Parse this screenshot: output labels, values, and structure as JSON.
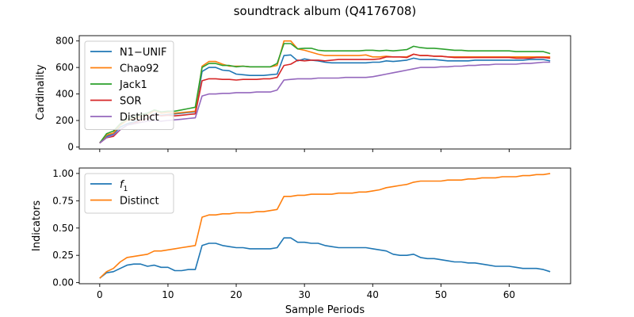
{
  "figure": {
    "title": "soundtrack album (Q4176708)",
    "xlabel": "Sample Periods"
  },
  "chart_data": [
    {
      "type": "line",
      "ylabel": "Cardinality",
      "xlim": [
        -3,
        69
      ],
      "ylim": [
        -15,
        840
      ],
      "yticks": [
        0,
        200,
        400,
        600,
        800
      ],
      "xticks": [
        0,
        10,
        20,
        30,
        40,
        50,
        60
      ],
      "grid": false,
      "legend": "top-left",
      "x": [
        0,
        1,
        2,
        3,
        4,
        5,
        6,
        7,
        8,
        9,
        10,
        11,
        12,
        13,
        14,
        15,
        16,
        17,
        18,
        19,
        20,
        21,
        22,
        23,
        24,
        25,
        26,
        27,
        28,
        29,
        30,
        31,
        32,
        33,
        34,
        35,
        36,
        37,
        38,
        39,
        40,
        41,
        42,
        43,
        44,
        45,
        46,
        47,
        48,
        49,
        50,
        51,
        52,
        53,
        54,
        55,
        56,
        57,
        58,
        59,
        60,
        61,
        62,
        63,
        64,
        65,
        66
      ],
      "series": [
        {
          "name": "N1−UNIF",
          "color": "#1f77b4",
          "values": [
            30,
            80,
            100,
            150,
            175,
            190,
            205,
            215,
            250,
            240,
            245,
            250,
            255,
            260,
            265,
            570,
            600,
            600,
            580,
            575,
            550,
            545,
            540,
            540,
            540,
            545,
            550,
            690,
            695,
            650,
            665,
            655,
            650,
            640,
            635,
            635,
            635,
            635,
            635,
            635,
            640,
            640,
            650,
            645,
            650,
            655,
            670,
            660,
            660,
            660,
            655,
            650,
            650,
            650,
            650,
            655,
            655,
            655,
            655,
            655,
            655,
            655,
            655,
            660,
            660,
            660,
            650
          ]
        },
        {
          "name": "Chao92",
          "color": "#ff7f0e",
          "values": [
            30,
            90,
            105,
            165,
            200,
            210,
            230,
            240,
            275,
            255,
            260,
            255,
            260,
            265,
            270,
            610,
            645,
            645,
            625,
            610,
            610,
            610,
            605,
            605,
            605,
            605,
            615,
            800,
            800,
            740,
            730,
            715,
            700,
            690,
            690,
            690,
            690,
            690,
            690,
            695,
            680,
            680,
            685,
            680,
            680,
            680,
            700,
            690,
            690,
            685,
            685,
            680,
            680,
            680,
            680,
            680,
            680,
            680,
            680,
            680,
            680,
            680,
            680,
            680,
            680,
            680,
            680
          ]
        },
        {
          "name": "Jack1",
          "color": "#2ca02c",
          "values": [
            30,
            100,
            120,
            175,
            210,
            225,
            245,
            255,
            280,
            265,
            270,
            270,
            280,
            290,
            300,
            600,
            630,
            630,
            615,
            615,
            605,
            610,
            605,
            605,
            605,
            605,
            630,
            780,
            780,
            740,
            745,
            745,
            730,
            725,
            725,
            725,
            725,
            725,
            725,
            730,
            730,
            725,
            730,
            725,
            730,
            735,
            760,
            750,
            745,
            745,
            740,
            735,
            730,
            730,
            725,
            725,
            725,
            725,
            725,
            725,
            725,
            720,
            720,
            720,
            720,
            720,
            705
          ]
        },
        {
          "name": "SOR",
          "color": "#d62728",
          "values": [
            30,
            70,
            80,
            130,
            165,
            180,
            200,
            215,
            245,
            235,
            240,
            235,
            240,
            245,
            250,
            500,
            515,
            515,
            510,
            510,
            505,
            510,
            510,
            510,
            515,
            515,
            525,
            615,
            625,
            655,
            650,
            655,
            655,
            650,
            655,
            660,
            660,
            660,
            660,
            660,
            660,
            665,
            680,
            680,
            680,
            675,
            700,
            690,
            690,
            685,
            685,
            680,
            675,
            675,
            675,
            675,
            675,
            675,
            675,
            675,
            675,
            670,
            670,
            670,
            675,
            675,
            670
          ]
        },
        {
          "name": "Distinct",
          "color": "#9467bd",
          "values": [
            30,
            70,
            90,
            130,
            165,
            175,
            185,
            195,
            200,
            195,
            200,
            205,
            210,
            215,
            220,
            385,
            400,
            400,
            405,
            405,
            410,
            410,
            410,
            415,
            415,
            415,
            430,
            505,
            510,
            515,
            515,
            515,
            520,
            520,
            520,
            520,
            525,
            525,
            525,
            525,
            530,
            540,
            550,
            560,
            570,
            580,
            590,
            600,
            600,
            600,
            605,
            605,
            610,
            610,
            615,
            615,
            620,
            620,
            625,
            625,
            625,
            625,
            630,
            630,
            635,
            640,
            640
          ]
        }
      ]
    },
    {
      "type": "line",
      "ylabel": "Indicators",
      "xlim": [
        -3,
        69
      ],
      "ylim": [
        -0.01,
        1.05
      ],
      "yticks": [
        "0.00",
        "0.25",
        "0.50",
        "0.75",
        "1.00"
      ],
      "xticks": [
        0,
        10,
        20,
        30,
        40,
        50,
        60
      ],
      "grid": false,
      "legend": "top-left",
      "x": [
        0,
        1,
        2,
        3,
        4,
        5,
        6,
        7,
        8,
        9,
        10,
        11,
        12,
        13,
        14,
        15,
        16,
        17,
        18,
        19,
        20,
        21,
        22,
        23,
        24,
        25,
        26,
        27,
        28,
        29,
        30,
        31,
        32,
        33,
        34,
        35,
        36,
        37,
        38,
        39,
        40,
        41,
        42,
        43,
        44,
        45,
        46,
        47,
        48,
        49,
        50,
        51,
        52,
        53,
        54,
        55,
        56,
        57,
        58,
        59,
        60,
        61,
        62,
        63,
        64,
        65,
        66
      ],
      "series": [
        {
          "name": "f1",
          "color": "#1f77b4",
          "values": [
            0.04,
            0.09,
            0.1,
            0.13,
            0.16,
            0.17,
            0.17,
            0.15,
            0.16,
            0.14,
            0.14,
            0.11,
            0.11,
            0.12,
            0.12,
            0.34,
            0.36,
            0.36,
            0.34,
            0.33,
            0.32,
            0.32,
            0.31,
            0.31,
            0.31,
            0.31,
            0.32,
            0.41,
            0.41,
            0.37,
            0.37,
            0.36,
            0.36,
            0.34,
            0.33,
            0.32,
            0.32,
            0.32,
            0.32,
            0.32,
            0.31,
            0.3,
            0.29,
            0.26,
            0.25,
            0.25,
            0.26,
            0.23,
            0.22,
            0.22,
            0.21,
            0.2,
            0.19,
            0.19,
            0.18,
            0.18,
            0.17,
            0.16,
            0.15,
            0.15,
            0.15,
            0.14,
            0.13,
            0.13,
            0.13,
            0.12,
            0.1
          ]
        },
        {
          "name": "Distinct",
          "color": "#ff7f0e",
          "values": [
            0.04,
            0.1,
            0.13,
            0.19,
            0.23,
            0.24,
            0.25,
            0.26,
            0.29,
            0.29,
            0.3,
            0.31,
            0.32,
            0.33,
            0.34,
            0.6,
            0.62,
            0.62,
            0.63,
            0.63,
            0.64,
            0.64,
            0.64,
            0.65,
            0.65,
            0.66,
            0.67,
            0.79,
            0.79,
            0.8,
            0.8,
            0.81,
            0.81,
            0.81,
            0.81,
            0.82,
            0.82,
            0.82,
            0.83,
            0.83,
            0.84,
            0.85,
            0.87,
            0.88,
            0.89,
            0.9,
            0.92,
            0.93,
            0.93,
            0.93,
            0.93,
            0.94,
            0.94,
            0.94,
            0.95,
            0.95,
            0.96,
            0.96,
            0.96,
            0.97,
            0.97,
            0.97,
            0.98,
            0.98,
            0.99,
            0.99,
            1.0
          ]
        }
      ]
    }
  ]
}
